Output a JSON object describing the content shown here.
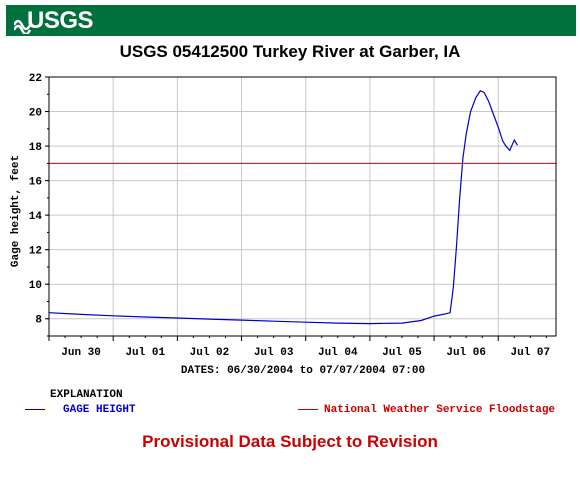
{
  "header": {
    "logo_text": "USGS",
    "banner_color": "#00703c"
  },
  "chart_data": {
    "type": "line",
    "title": "USGS 05412500 Turkey River at Garber, IA",
    "ylabel": "Gage height, feet",
    "xlabel": "DATES: 06/30/2004 to 07/07/2004 07:00",
    "ylim": [
      7,
      22
    ],
    "yticks": [
      8,
      10,
      12,
      14,
      16,
      18,
      20,
      22
    ],
    "xticks": [
      {
        "t": 0.5,
        "label": "Jun 30"
      },
      {
        "t": 1.5,
        "label": "Jul 01"
      },
      {
        "t": 2.5,
        "label": "Jul 02"
      },
      {
        "t": 3.5,
        "label": "Jul 03"
      },
      {
        "t": 4.5,
        "label": "Jul 04"
      },
      {
        "t": 5.5,
        "label": "Jul 05"
      },
      {
        "t": 6.5,
        "label": "Jul 06"
      },
      {
        "t": 7.5,
        "label": "Jul 07"
      }
    ],
    "xlim": [
      0,
      7.9
    ],
    "grid": true,
    "series": [
      {
        "name": "GAGE HEIGHT",
        "color": "#0000cc",
        "points": [
          [
            0.0,
            8.35
          ],
          [
            0.5,
            8.25
          ],
          [
            1.0,
            8.17
          ],
          [
            1.5,
            8.1
          ],
          [
            2.0,
            8.04
          ],
          [
            2.5,
            7.98
          ],
          [
            3.0,
            7.92
          ],
          [
            3.5,
            7.86
          ],
          [
            4.0,
            7.8
          ],
          [
            4.5,
            7.75
          ],
          [
            5.0,
            7.72
          ],
          [
            5.5,
            7.75
          ],
          [
            5.8,
            7.9
          ],
          [
            6.0,
            8.15
          ],
          [
            6.2,
            8.3
          ],
          [
            6.25,
            8.35
          ],
          [
            6.3,
            9.8
          ],
          [
            6.35,
            12.2
          ],
          [
            6.4,
            15.0
          ],
          [
            6.45,
            17.3
          ],
          [
            6.5,
            18.7
          ],
          [
            6.57,
            20.0
          ],
          [
            6.65,
            20.8
          ],
          [
            6.72,
            21.2
          ],
          [
            6.78,
            21.1
          ],
          [
            6.85,
            20.6
          ],
          [
            6.93,
            19.8
          ],
          [
            7.0,
            19.1
          ],
          [
            7.07,
            18.3
          ],
          [
            7.12,
            18.0
          ],
          [
            7.18,
            17.75
          ],
          [
            7.22,
            18.1
          ],
          [
            7.25,
            18.35
          ],
          [
            7.3,
            18.05
          ]
        ]
      },
      {
        "name": "National Weather Service Floodstage",
        "color": "#cc0000",
        "value": 17
      }
    ]
  },
  "explanation": {
    "title": "EXPLANATION",
    "gage_label": "GAGE HEIGHT",
    "flood_label": "National Weather Service Floodstage"
  },
  "footer": {
    "provisional": "Provisional Data Subject to Revision"
  }
}
